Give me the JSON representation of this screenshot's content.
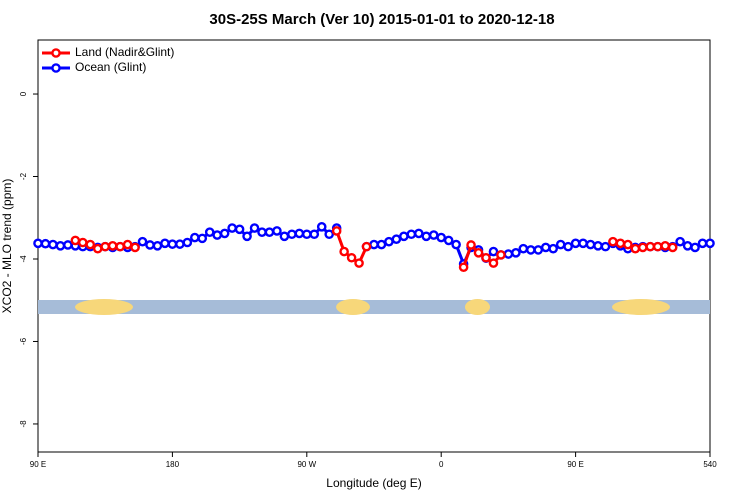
{
  "chart_data": {
    "type": "line",
    "title": "30S-25S March (Ver 10)   2015-01-01 to 2020-12-18",
    "x_label": "Longitude (deg E)",
    "y_label": "XCO2 - MLO trend (ppm)",
    "x": [
      90,
      95,
      100,
      105,
      110,
      115,
      120,
      125,
      130,
      135,
      140,
      145,
      150,
      155,
      160,
      165,
      170,
      175,
      180,
      185,
      190,
      195,
      200,
      205,
      210,
      215,
      220,
      225,
      230,
      235,
      240,
      245,
      250,
      255,
      260,
      265,
      270,
      275,
      280,
      285,
      290,
      295,
      300,
      305,
      310,
      315,
      320,
      325,
      330,
      335,
      340,
      345,
      350,
      355,
      360,
      365,
      370,
      375,
      380,
      385,
      390,
      395,
      400,
      405,
      410,
      415,
      420,
      425,
      430,
      435,
      440,
      445,
      450,
      455,
      460,
      465,
      470,
      475,
      480,
      485,
      490,
      495,
      500,
      505,
      510,
      515,
      520,
      525,
      530,
      535,
      540
    ],
    "series": [
      {
        "name": "Ocean (Glint)",
        "color": "#0000ff",
        "values": [
          -3.62,
          -3.63,
          -3.65,
          -3.68,
          -3.66,
          -3.68,
          -3.7,
          -3.7,
          -3.72,
          -3.7,
          -3.72,
          -3.7,
          -3.72,
          -3.7,
          -3.58,
          -3.66,
          -3.68,
          -3.62,
          -3.64,
          -3.64,
          -3.6,
          -3.48,
          -3.5,
          -3.35,
          -3.42,
          -3.38,
          -3.25,
          -3.28,
          -3.45,
          -3.25,
          -3.35,
          -3.35,
          -3.32,
          -3.45,
          -3.4,
          -3.38,
          -3.4,
          -3.4,
          -3.22,
          -3.4,
          -3.25,
          null,
          null,
          null,
          -3.7,
          -3.65,
          -3.65,
          -3.58,
          -3.52,
          -3.45,
          -3.4,
          -3.38,
          -3.45,
          -3.42,
          -3.48,
          -3.55,
          -3.65,
          -4.12,
          -3.72,
          -3.78,
          -3.98,
          -3.82,
          -3.9,
          -3.88,
          -3.85,
          -3.75,
          -3.78,
          -3.78,
          -3.72,
          -3.75,
          -3.65,
          -3.7,
          -3.62,
          -3.62,
          -3.65,
          -3.68,
          -3.7,
          -3.62,
          -3.68,
          -3.75,
          -3.72,
          -3.7,
          -3.7,
          -3.7,
          -3.72,
          -3.7,
          -3.58,
          -3.68,
          -3.72,
          -3.62,
          -3.62
        ]
      },
      {
        "name": "Land (Nadir&Glint)",
        "color": "#ff0000",
        "values": [
          null,
          null,
          null,
          null,
          null,
          -3.55,
          -3.6,
          -3.65,
          -3.75,
          -3.7,
          -3.68,
          -3.7,
          -3.65,
          -3.72,
          null,
          null,
          null,
          null,
          null,
          null,
          null,
          null,
          null,
          null,
          null,
          null,
          null,
          null,
          null,
          null,
          null,
          null,
          null,
          null,
          null,
          null,
          null,
          null,
          null,
          null,
          -3.32,
          -3.82,
          -3.97,
          -4.1,
          -3.7,
          null,
          null,
          null,
          null,
          null,
          null,
          null,
          null,
          null,
          null,
          null,
          null,
          -4.2,
          -3.66,
          -3.85,
          -3.97,
          -4.1,
          -3.9,
          null,
          null,
          null,
          null,
          null,
          null,
          null,
          null,
          null,
          null,
          null,
          null,
          null,
          null,
          -3.58,
          -3.62,
          -3.65,
          -3.75,
          -3.72,
          -3.7,
          -3.7,
          -3.68,
          -3.72,
          null,
          null,
          null,
          null,
          null
        ]
      }
    ],
    "legend_order": [
      1,
      0
    ],
    "land_regions": [
      [
        114.8,
        153.6
      ],
      [
        289.6,
        312.3
      ],
      [
        375.9,
        392.7
      ],
      [
        474.4,
        513.2
      ]
    ],
    "xlim": [
      90,
      540
    ],
    "xticks": [
      {
        "value": 90,
        "label": "90 E"
      },
      180,
      {
        "value": 270,
        "label": "90 W"
      },
      {
        "value": 360,
        "label": "0"
      },
      {
        "value": 450,
        "label": "90 E"
      },
      540
    ],
    "ylim": [
      -8.68,
      1.31
    ],
    "yticks": [
      0,
      -2,
      -4,
      -6,
      -8
    ]
  }
}
